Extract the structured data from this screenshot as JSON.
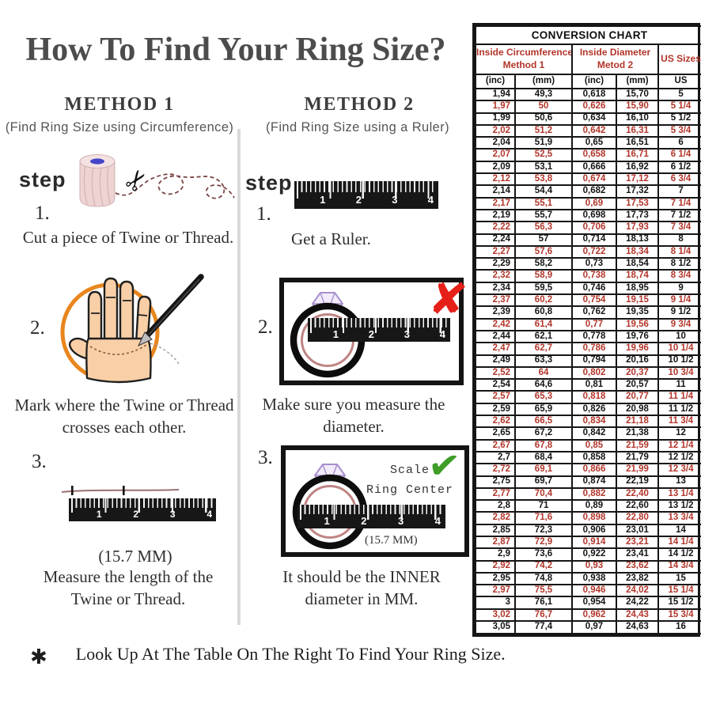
{
  "page": {
    "title": "How To Find Your Ring Size?",
    "footnote": "Look Up At The Table On The Right To Find Your Ring Size."
  },
  "icons": {
    "scissors": "✂",
    "x_mark": "✘",
    "check_mark": "✔",
    "asterisk": "✱"
  },
  "colors": {
    "accent_red": "#b2352a",
    "x_red": "#e52019",
    "check_green": "#3f9d27",
    "circle_orange": "#e8861d",
    "hand_skin": "#f8cfa6",
    "ring_inner_pink": "#c08484",
    "diamond_purple": "#a78fcd",
    "twine_pink": "#eed3d3",
    "ruler_black": "#171717",
    "title_gray": "#4c4c4c"
  },
  "method1": {
    "heading": "METHOD 1",
    "subheading": "(Find Ring Size using Circumference)",
    "step_label": "step",
    "steps": [
      {
        "num": "1.",
        "text": "Cut a piece of Twine or Thread."
      },
      {
        "num": "2.",
        "text": "Mark where the Twine or Thread crosses each other."
      },
      {
        "num": "3.",
        "text": "Measure the length of the Twine or Thread.",
        "measurement": "(15.7 MM)"
      }
    ]
  },
  "method2": {
    "heading": "METHOD 2",
    "subheading": "(Find Ring Size using a Ruler)",
    "step_label": "step",
    "steps": [
      {
        "num": "1.",
        "text": "Get a Ruler."
      },
      {
        "num": "2.",
        "text": "Make sure you measure the diameter."
      },
      {
        "num": "3.",
        "text": "It should be the INNER diameter in MM.",
        "measurement": "(15.7 MM)",
        "annotation_line1": "Scale",
        "annotation_line2": "Ring Center"
      }
    ]
  },
  "ruler_numbers": [
    "1",
    "2",
    "3",
    "4"
  ],
  "table": {
    "title": "CONVERSION CHART",
    "group_headers": [
      {
        "line1": "Inside Circumference",
        "line2": "Method 1"
      },
      {
        "line1": "Inside Diameter",
        "line2": "Metod 2"
      },
      {
        "label": "US Sizes"
      }
    ],
    "col_headers": [
      "(inc)",
      "(mm)",
      "(inc)",
      "(mm)",
      "US"
    ],
    "rows": [
      [
        "1,94",
        "49,3",
        "0,618",
        "15,70",
        "5"
      ],
      [
        "1,97",
        "50",
        "0,626",
        "15,90",
        "5 1/4"
      ],
      [
        "1,99",
        "50,6",
        "0,634",
        "16,10",
        "5 1/2"
      ],
      [
        "2,02",
        "51,2",
        "0,642",
        "16,31",
        "5 3/4"
      ],
      [
        "2,04",
        "51,9",
        "0,65",
        "16,51",
        "6"
      ],
      [
        "2,07",
        "52,5",
        "0,658",
        "16,71",
        "6 1/4"
      ],
      [
        "2,09",
        "53,1",
        "0,666",
        "16,92",
        "6 1/2"
      ],
      [
        "2,12",
        "53,8",
        "0,674",
        "17,12",
        "6 3/4"
      ],
      [
        "2,14",
        "54,4",
        "0,682",
        "17,32",
        "7"
      ],
      [
        "2,17",
        "55,1",
        "0,69",
        "17,53",
        "7 1/4"
      ],
      [
        "2,19",
        "55,7",
        "0,698",
        "17,73",
        "7 1/2"
      ],
      [
        "2,22",
        "56,3",
        "0,706",
        "17,93",
        "7 3/4"
      ],
      [
        "2,24",
        "57",
        "0,714",
        "18,13",
        "8"
      ],
      [
        "2,27",
        "57,6",
        "0,722",
        "18,34",
        "8 1/4"
      ],
      [
        "2,29",
        "58,2",
        "0,73",
        "18,54",
        "8 1/2"
      ],
      [
        "2,32",
        "58,9",
        "0,738",
        "18,74",
        "8 3/4"
      ],
      [
        "2,34",
        "59,5",
        "0,746",
        "18,95",
        "9"
      ],
      [
        "2,37",
        "60,2",
        "0,754",
        "19,15",
        "9 1/4"
      ],
      [
        "2,39",
        "60,8",
        "0,762",
        "19,35",
        "9 1/2"
      ],
      [
        "2,42",
        "61,4",
        "0,77",
        "19,56",
        "9 3/4"
      ],
      [
        "2,44",
        "62,1",
        "0,778",
        "19,76",
        "10"
      ],
      [
        "2,47",
        "62,7",
        "0,786",
        "19,96",
        "10 1/4"
      ],
      [
        "2,49",
        "63,3",
        "0,794",
        "20,16",
        "10 1/2"
      ],
      [
        "2,52",
        "64",
        "0,802",
        "20,37",
        "10 3/4"
      ],
      [
        "2,54",
        "64,6",
        "0,81",
        "20,57",
        "11"
      ],
      [
        "2,57",
        "65,3",
        "0,818",
        "20,77",
        "11 1/4"
      ],
      [
        "2,59",
        "65,9",
        "0,826",
        "20,98",
        "11 1/2"
      ],
      [
        "2,62",
        "66,5",
        "0,834",
        "21,18",
        "11 3/4"
      ],
      [
        "2,65",
        "67,2",
        "0,842",
        "21,38",
        "12"
      ],
      [
        "2,67",
        "67,8",
        "0,85",
        "21,59",
        "12 1/4"
      ],
      [
        "2,7",
        "68,4",
        "0,858",
        "21,79",
        "12 1/2"
      ],
      [
        "2,72",
        "69,1",
        "0,866",
        "21,99",
        "12 3/4"
      ],
      [
        "2,75",
        "69,7",
        "0,874",
        "22,19",
        "13"
      ],
      [
        "2,77",
        "70,4",
        "0,882",
        "22,40",
        "13 1/4"
      ],
      [
        "2,8",
        "71",
        "0,89",
        "22,60",
        "13 1/2"
      ],
      [
        "2,82",
        "71,6",
        "0,898",
        "22,80",
        "13 3/4"
      ],
      [
        "2,85",
        "72,3",
        "0,906",
        "23,01",
        "14"
      ],
      [
        "2,87",
        "72,9",
        "0,914",
        "23,21",
        "14 1/4"
      ],
      [
        "2,9",
        "73,6",
        "0,922",
        "23,41",
        "14 1/2"
      ],
      [
        "2,92",
        "74,2",
        "0,93",
        "23,62",
        "14 3/4"
      ],
      [
        "2,95",
        "74,8",
        "0,938",
        "23,82",
        "15"
      ],
      [
        "2,97",
        "75,5",
        "0,946",
        "24,02",
        "15 1/4"
      ],
      [
        "3",
        "76,1",
        "0,954",
        "24,22",
        "15 1/2"
      ],
      [
        "3,02",
        "76,7",
        "0,962",
        "24,43",
        "15 3/4"
      ],
      [
        "3,05",
        "77,4",
        "0,97",
        "24,63",
        "16"
      ]
    ]
  }
}
